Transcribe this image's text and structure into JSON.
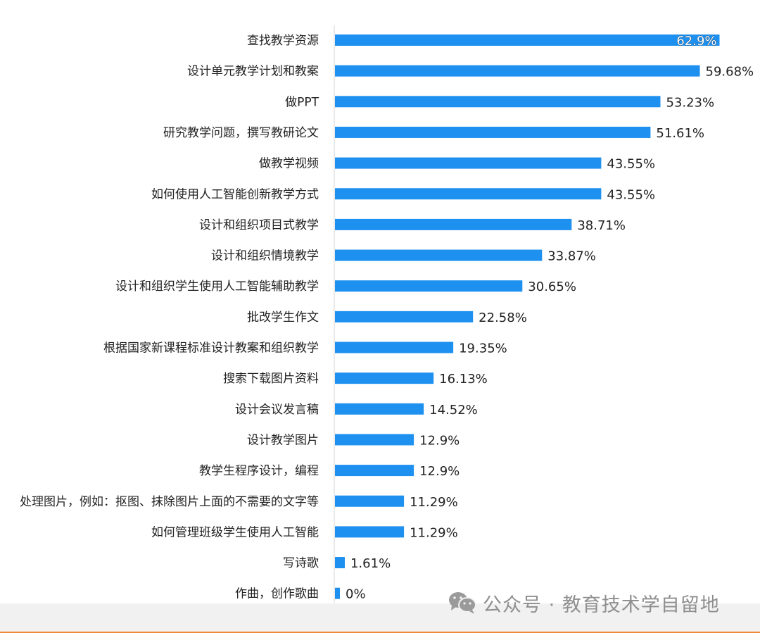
{
  "chart_data": {
    "type": "bar",
    "orientation": "horizontal",
    "title": "",
    "xlabel": "",
    "ylabel": "",
    "xlim": [
      0,
      100
    ],
    "grid": false,
    "bar_color": "#1E90F0",
    "categories": [
      "查找教学资源",
      "设计单元教学计划和教案",
      "做PPT",
      "研究教学问题，撰写教研论文",
      "做教学视频",
      "如何使用人工智能创新教学方式",
      "设计和组织项目式教学",
      "设计和组织情境教学",
      "设计和组织学生使用人工智能辅助教学",
      "批改学生作文",
      "根据国家新课程标准设计教案和组织教学",
      "搜索下载图片资料",
      "设计会议发言稿",
      "设计教学图片",
      "教学生程序设计，编程",
      "处理图片，例如：抠图、抹除图片上面的不需要的文字等",
      "如何管理班级学生使用人工智能",
      "写诗歌",
      "作曲，创作歌曲"
    ],
    "values": [
      62.9,
      59.68,
      53.23,
      51.61,
      43.55,
      43.55,
      38.71,
      33.87,
      30.65,
      22.58,
      19.35,
      16.13,
      14.52,
      12.9,
      12.9,
      11.29,
      11.29,
      1.61,
      0
    ],
    "value_labels": [
      "62.9%",
      "59.68%",
      "53.23%",
      "51.61%",
      "43.55%",
      "43.55%",
      "38.71%",
      "33.87%",
      "30.65%",
      "22.58%",
      "19.35%",
      "16.13%",
      "14.52%",
      "12.9%",
      "12.9%",
      "11.29%",
      "11.29%",
      "1.61%",
      "0%"
    ]
  },
  "watermark": {
    "text": "公众号 · 教育技术学自留地",
    "icon": "wechat-icon",
    "color": "#8f8f8f"
  },
  "footer": {
    "accent_color": "#f08a3a"
  }
}
